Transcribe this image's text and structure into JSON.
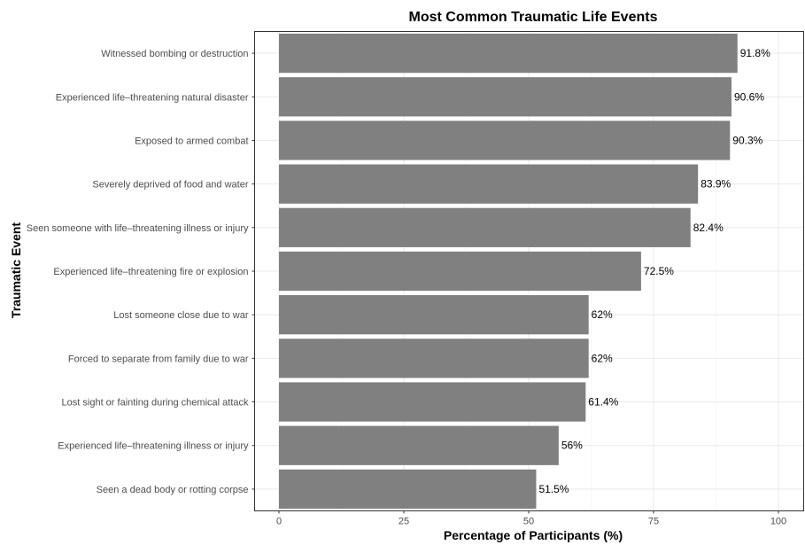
{
  "chart_data": {
    "type": "bar",
    "orientation": "horizontal",
    "title": "Most Common Traumatic Life Events",
    "xlabel": "Percentage of Participants (%)",
    "ylabel": "Traumatic Event",
    "xlim": [
      0,
      100
    ],
    "xticks": [
      "0",
      "25",
      "50",
      "75",
      "100"
    ],
    "xtick_values": [
      0,
      25,
      50,
      75,
      100
    ],
    "grid": true,
    "bar_color": "#808080",
    "categories": [
      "Witnessed bombing or destruction",
      "Experienced life–threatening natural disaster",
      "Exposed to armed combat",
      "Severely deprived of food and water",
      "Seen someone with life–threatening illness or injury",
      "Experienced life–threatening fire or explosion",
      "Lost someone close due to war",
      "Forced to separate from family due to war",
      "Lost sight or fainting during chemical attack",
      "Experienced life–threatening illness or injury",
      "Seen a dead body or rotting corpse"
    ],
    "values": [
      91.8,
      90.6,
      90.3,
      83.9,
      82.4,
      72.5,
      62,
      62,
      61.4,
      56,
      51.5
    ],
    "data_labels": [
      "91.8%",
      "90.6%",
      "90.3%",
      "83.9%",
      "82.4%",
      "72.5%",
      "62%",
      "62%",
      "61.4%",
      "56%",
      "51.5%"
    ]
  }
}
